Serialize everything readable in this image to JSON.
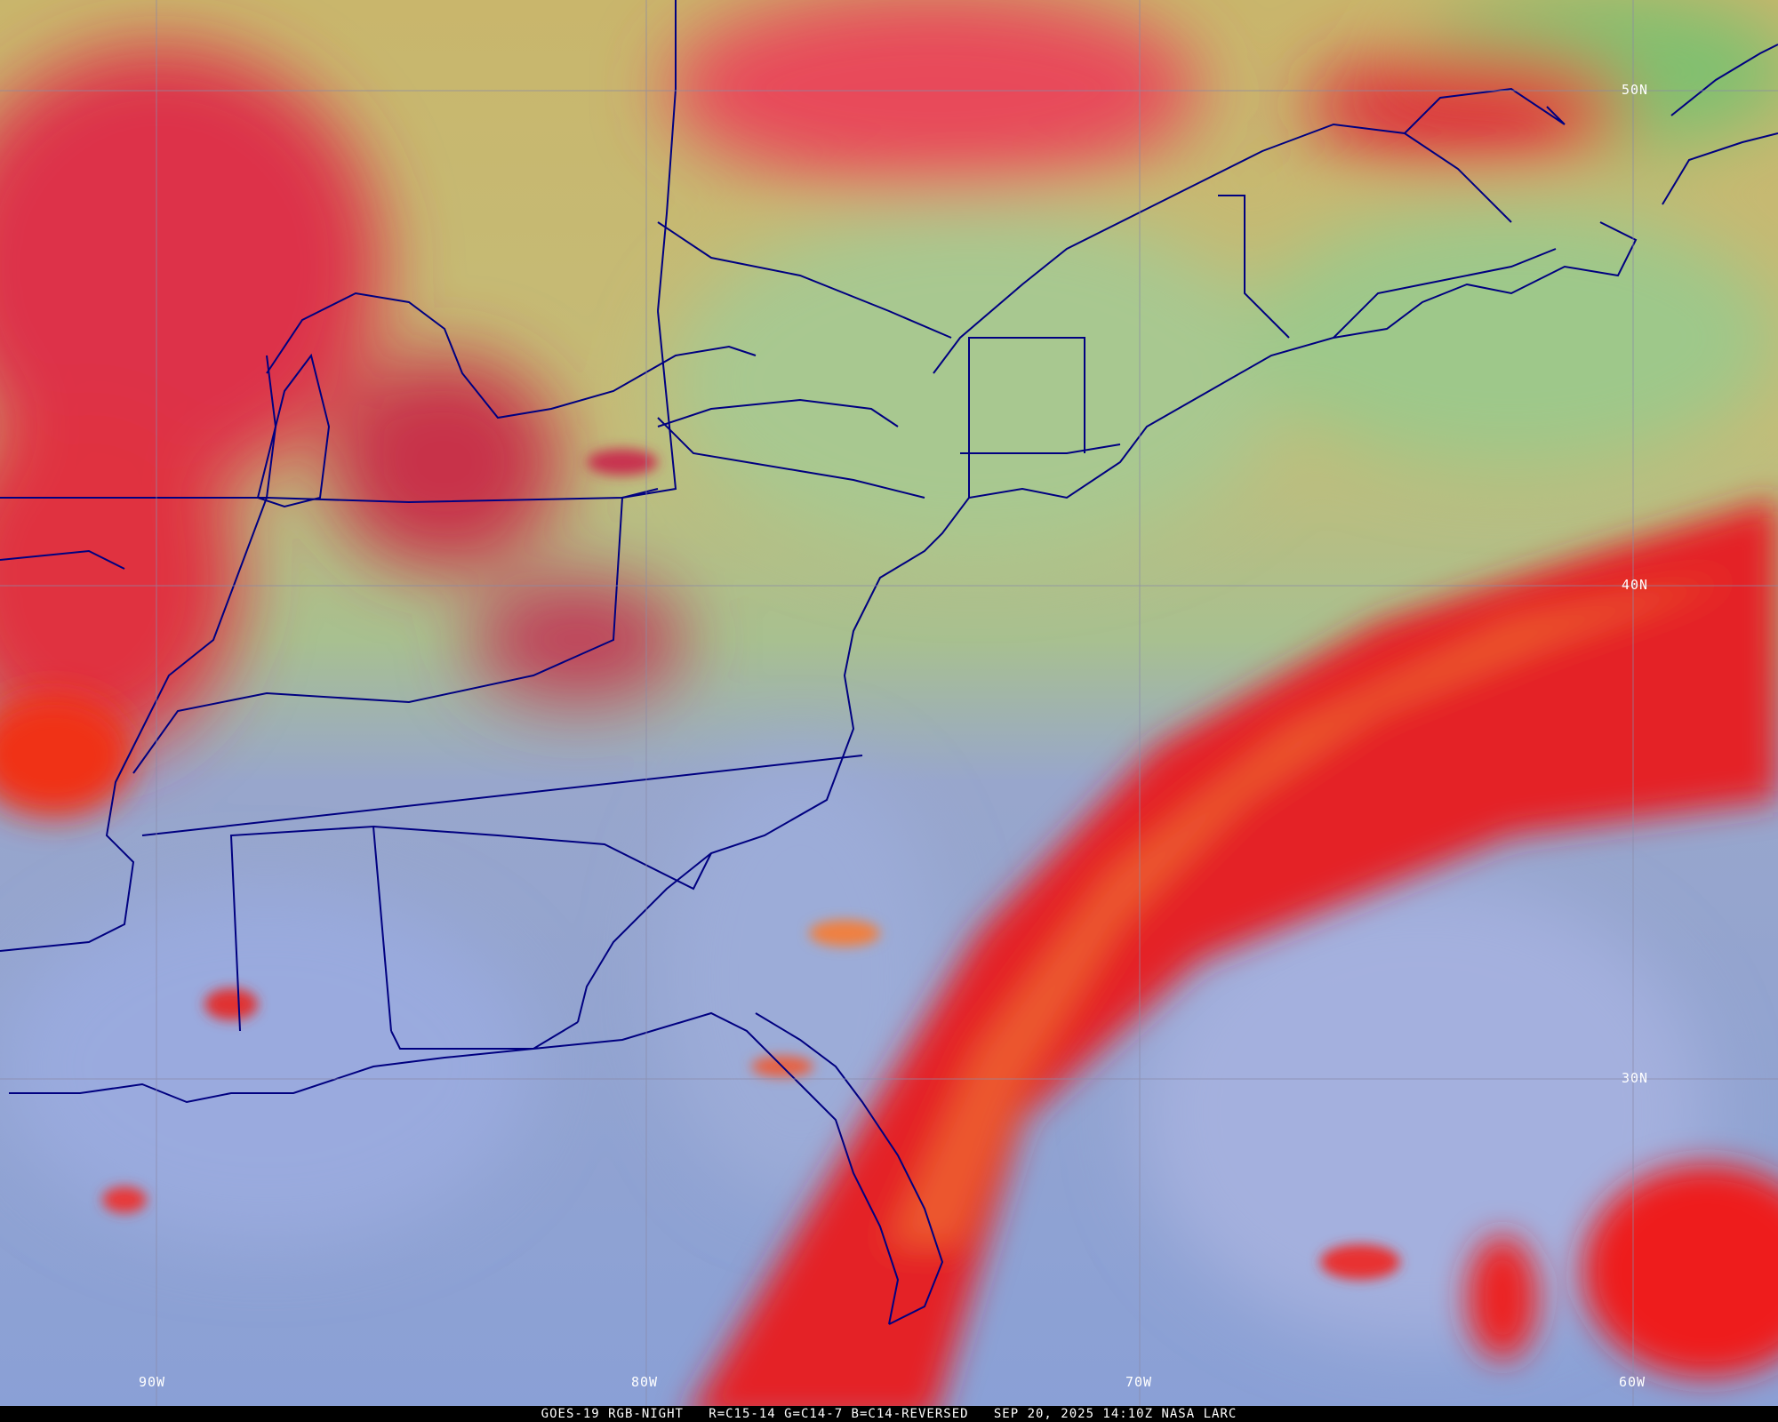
{
  "caption": {
    "satellite": "GOES-19 RGB-NIGHT",
    "channels": "R=C15-14 G=C14-7 B=C14-REVERSED",
    "datetime": "SEP 20, 2025 14:10Z",
    "credit": "NASA LARC"
  },
  "grid": {
    "latitudes": [
      "50N",
      "40N",
      "30N"
    ],
    "longitudes": [
      "90W",
      "80W",
      "70W",
      "60W"
    ]
  },
  "colors": {
    "boundaries": "#000080",
    "grid": "#8a8aa8",
    "clear_land_north": "#c8b870",
    "clear_ocean": "#8fa0d8",
    "high_cloud": "#e82030",
    "cloud_top_orange": "#f08030"
  }
}
